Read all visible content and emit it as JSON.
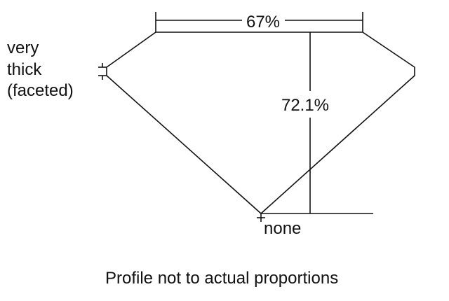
{
  "labels": {
    "table_percent": "67%",
    "depth_percent": "72.1%",
    "girdle_line1": "very",
    "girdle_line2": "thick",
    "girdle_line3": "(faceted)",
    "culet": "none",
    "caption": "Profile not to actual proportions"
  },
  "colors": {
    "line": "#111111",
    "background": "#ffffff"
  }
}
